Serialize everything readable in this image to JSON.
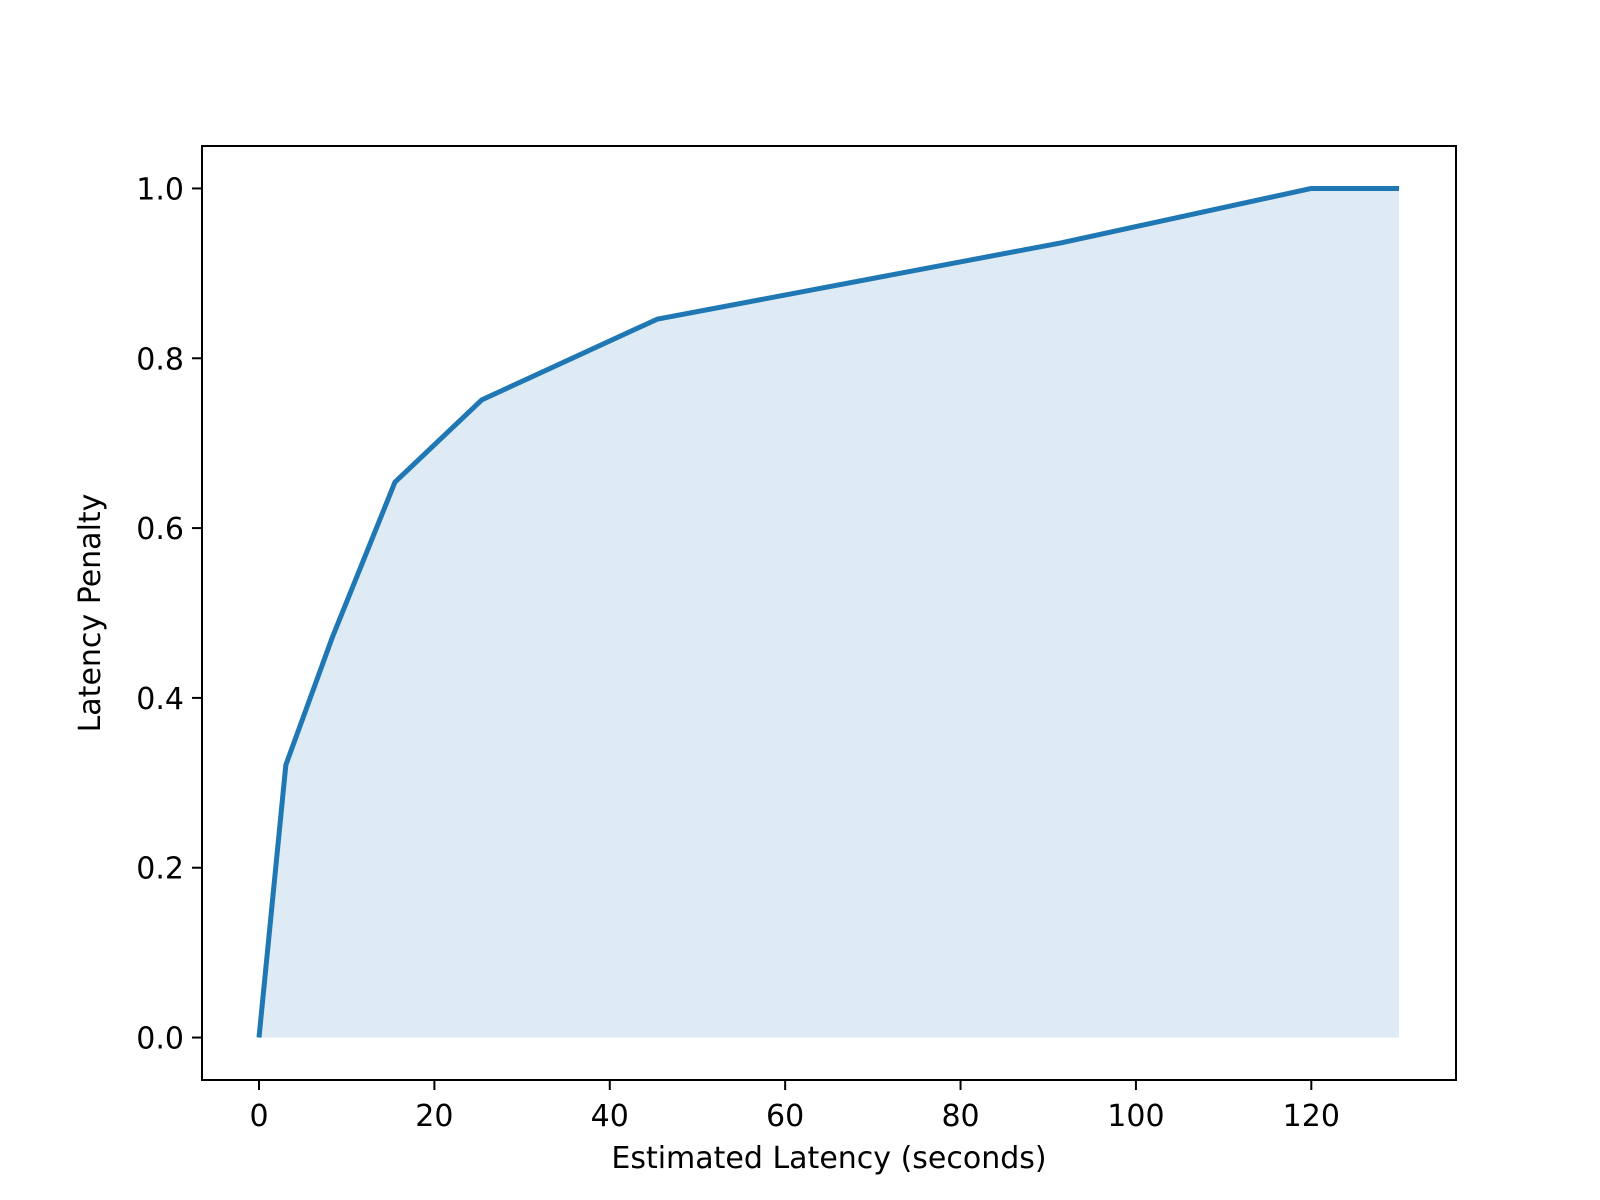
{
  "chart_data": {
    "type": "area",
    "xlabel": "Estimated Latency (seconds)",
    "ylabel": "Latency Penalty",
    "x": [
      0,
      3.06,
      8.35,
      15.5,
      25.4,
      45.4,
      91.5,
      120,
      130
    ],
    "series": [
      {
        "color": "#1f77b4",
        "values": [
          0,
          0.321,
          0.471,
          0.654,
          0.751,
          0.846,
          0.936,
          1.0,
          1.0
        ]
      }
    ],
    "xlim": [
      -6.5,
      136.5
    ],
    "ylim": [
      -0.05,
      1.05
    ],
    "xticks": [
      0,
      20,
      40,
      60,
      80,
      100,
      120
    ],
    "yticks": [
      {
        "value": 0,
        "label": "0.0"
      },
      0.2,
      0.4,
      0.6,
      0.8,
      {
        "value": 1,
        "label": "1.0"
      }
    ],
    "grid": false
  }
}
